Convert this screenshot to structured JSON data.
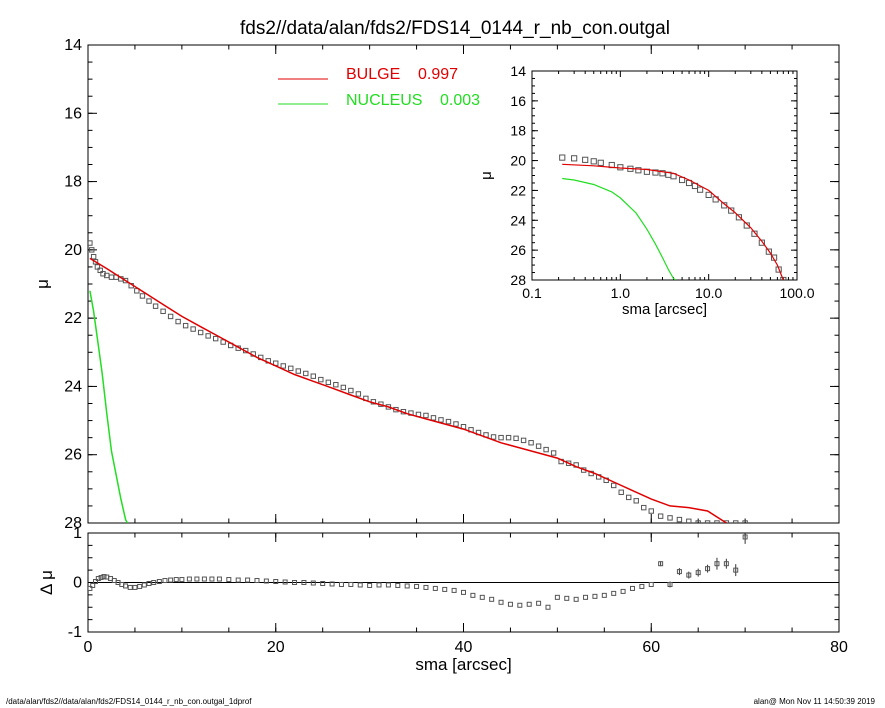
{
  "title": "fds2//data/alan/fds2/FDS14_0144_r_nb_con.outgal",
  "footer": {
    "left": "/data/alan/fds2//data/alan/fds2/FDS14_0144_r_nb_con.outgal_1dprof",
    "right": "alan@  Mon Nov 11 14:50:39 2019"
  },
  "colors": {
    "bulge": "#e00000",
    "nucleus": "#22dd22",
    "data": "#555555",
    "axes": "#000000"
  },
  "chart_data": [
    {
      "id": "main",
      "type": "scatter",
      "xlabel": "",
      "ylabel": "μ",
      "xlim": [
        0,
        80
      ],
      "ylim": [
        28,
        14
      ],
      "yticks": [
        14,
        16,
        18,
        20,
        22,
        24,
        26,
        28
      ],
      "xticks": [
        0,
        20,
        40,
        60,
        80
      ],
      "legend": [
        {
          "name": "BULGE",
          "value": "0.997",
          "color": "#e00000"
        },
        {
          "name": "NUCLEUS",
          "value": "0.003",
          "color": "#22dd22"
        }
      ],
      "legend_placement": "top-center",
      "series": [
        {
          "kind": "data",
          "x": [
            0.2,
            0.4,
            0.6,
            0.8,
            1.0,
            1.3,
            1.6,
            2.0,
            2.5,
            3.0,
            3.5,
            4.0,
            4.6,
            5.2,
            5.8,
            6.5,
            7.2,
            8.0,
            8.8,
            9.6,
            10.4,
            11.2,
            12.0,
            12.8,
            13.6,
            14.4,
            15.2,
            16.0,
            16.8,
            17.6,
            18.4,
            19.2,
            20.0,
            20.8,
            21.6,
            22.4,
            23.2,
            24.0,
            24.8,
            25.6,
            26.4,
            27.2,
            28.0,
            28.8,
            29.6,
            30.4,
            31.2,
            32.0,
            32.8,
            33.6,
            34.4,
            35.2,
            36.0,
            36.8,
            37.6,
            38.4,
            39.2,
            40.0,
            40.8,
            41.6,
            42.4,
            43.2,
            44.0,
            44.8,
            45.6,
            46.4,
            47.2,
            48.0,
            48.8,
            49.6,
            50.4,
            51.2,
            52.0,
            52.8,
            53.6,
            54.4,
            55.2,
            56.0,
            56.8,
            57.6,
            58.4,
            59.2,
            60.0,
            61.0,
            62.0,
            63.0,
            64.0,
            65.0,
            66.0,
            67.0,
            68.0,
            69.0,
            70.0
          ],
          "y": [
            19.8,
            20.0,
            20.2,
            20.35,
            20.5,
            20.6,
            20.7,
            20.75,
            20.8,
            20.8,
            20.85,
            20.9,
            21.05,
            21.2,
            21.35,
            21.5,
            21.65,
            21.8,
            21.95,
            22.1,
            22.22,
            22.32,
            22.42,
            22.52,
            22.6,
            22.7,
            22.8,
            22.88,
            22.95,
            23.05,
            23.15,
            23.25,
            23.32,
            23.4,
            23.47,
            23.55,
            23.62,
            23.7,
            23.8,
            23.88,
            23.95,
            24.03,
            24.12,
            24.22,
            24.35,
            24.45,
            24.52,
            24.6,
            24.68,
            24.74,
            24.78,
            24.82,
            24.85,
            24.92,
            24.98,
            25.03,
            25.1,
            25.18,
            25.27,
            25.35,
            25.42,
            25.48,
            25.5,
            25.5,
            25.52,
            25.58,
            25.65,
            25.75,
            25.85,
            25.95,
            26.2,
            26.25,
            26.3,
            26.45,
            26.55,
            26.65,
            26.75,
            26.9,
            27.1,
            27.25,
            27.35,
            27.55,
            27.65,
            27.8,
            27.85,
            27.9,
            27.95,
            28.0,
            28.0,
            28.0,
            28.0,
            28.0,
            28.0
          ]
        },
        {
          "kind": "line",
          "name": "BULGE",
          "x": [
            0.2,
            2,
            4,
            6,
            8,
            10,
            12,
            14,
            16,
            18,
            20,
            22,
            24,
            26,
            28,
            30,
            32,
            34,
            36,
            38,
            40,
            42,
            44,
            46,
            48,
            50,
            52,
            54,
            56,
            58,
            60,
            62,
            64,
            66,
            68
          ],
          "y": [
            20.25,
            20.55,
            20.9,
            21.25,
            21.6,
            21.95,
            22.25,
            22.55,
            22.85,
            23.15,
            23.4,
            23.65,
            23.85,
            24.05,
            24.25,
            24.45,
            24.6,
            24.8,
            24.95,
            25.1,
            25.25,
            25.45,
            25.65,
            25.8,
            25.95,
            26.1,
            26.35,
            26.55,
            26.8,
            27.05,
            27.3,
            27.5,
            27.55,
            27.65,
            28.0
          ]
        },
        {
          "kind": "line",
          "name": "NUCLEUS",
          "x": [
            0.2,
            0.6,
            1.0,
            1.5,
            2.0,
            2.5,
            3.0,
            3.5,
            4.0,
            4.2
          ],
          "y": [
            21.2,
            21.8,
            22.6,
            23.6,
            24.8,
            25.9,
            26.6,
            27.3,
            27.9,
            28.0
          ]
        }
      ]
    },
    {
      "id": "inset",
      "type": "line",
      "xlabel": "sma [arcsec]",
      "ylabel": "μ",
      "xscale": "log",
      "xlim": [
        0.1,
        100.0
      ],
      "xticks": [
        "0.1",
        "1.0",
        "10.0",
        "100.0"
      ],
      "ylim": [
        28,
        14
      ],
      "yticks": [
        14,
        16,
        18,
        20,
        22,
        24,
        26,
        28
      ],
      "series": [
        {
          "kind": "data",
          "x": [
            0.22,
            0.3,
            0.4,
            0.5,
            0.6,
            0.8,
            1.0,
            1.3,
            1.6,
            2.0,
            2.5,
            3.0,
            3.5,
            4.0,
            5.0,
            6.0,
            7.0,
            8.0,
            10.0,
            12.0,
            15.0,
            18.0,
            22.0,
            27.0,
            33.0,
            40.0,
            48.0,
            55.0,
            62.0,
            70.0
          ],
          "y": [
            19.8,
            19.85,
            19.95,
            20.05,
            20.15,
            20.3,
            20.45,
            20.55,
            20.65,
            20.75,
            20.8,
            20.85,
            20.95,
            21.05,
            21.3,
            21.5,
            21.7,
            21.95,
            22.3,
            22.6,
            23.0,
            23.35,
            23.8,
            24.35,
            24.9,
            25.5,
            26.1,
            26.5,
            27.3,
            28.0
          ]
        },
        {
          "kind": "line",
          "name": "BULGE",
          "x": [
            0.22,
            0.5,
            1.0,
            2.0,
            4.0,
            6.0,
            8.0,
            10.0,
            15.0,
            20.0,
            30.0,
            40.0,
            50.0,
            60.0,
            70.0
          ],
          "y": [
            20.25,
            20.35,
            20.5,
            20.6,
            20.85,
            21.3,
            21.7,
            22.0,
            22.9,
            23.5,
            24.5,
            25.4,
            26.2,
            27.0,
            28.0
          ]
        },
        {
          "kind": "line",
          "name": "NUCLEUS",
          "x": [
            0.22,
            0.3,
            0.5,
            0.8,
            1.0,
            1.5,
            2.0,
            2.5,
            3.0,
            3.5,
            4.0,
            4.2
          ],
          "y": [
            21.2,
            21.3,
            21.6,
            22.1,
            22.5,
            23.5,
            24.6,
            25.6,
            26.5,
            27.3,
            27.9,
            28.0
          ]
        }
      ]
    },
    {
      "id": "residual",
      "type": "scatter",
      "xlabel": "sma [arcsec]",
      "ylabel": "Δ μ",
      "xlim": [
        0,
        80
      ],
      "xticks": [
        0,
        20,
        40,
        60,
        80
      ],
      "ylim": [
        -1,
        1
      ],
      "yticks": [
        -1,
        0,
        1
      ],
      "series": [
        {
          "kind": "data",
          "x": [
            0.2,
            0.5,
            0.8,
            1.1,
            1.4,
            1.7,
            2.0,
            2.4,
            2.8,
            3.2,
            3.6,
            4.0,
            4.5,
            5.0,
            5.5,
            6.0,
            6.5,
            7.0,
            7.6,
            8.2,
            8.8,
            9.4,
            10.0,
            10.8,
            11.6,
            12.4,
            13.2,
            14.0,
            15.0,
            16.0,
            17.0,
            18.0,
            19.0,
            20.0,
            21.0,
            22.0,
            23.0,
            24.0,
            25.0,
            26.0,
            27.0,
            28.0,
            29.0,
            30.0,
            31.0,
            32.0,
            33.0,
            34.0,
            35.0,
            36.0,
            37.0,
            38.0,
            39.0,
            40.0,
            41.0,
            42.0,
            43.0,
            44.0,
            45.0,
            46.0,
            47.0,
            48.0,
            49.0,
            50.0,
            51.0,
            52.0,
            53.0,
            54.0,
            55.0,
            56.0,
            57.0,
            58.0,
            59.0,
            60.0,
            61.0,
            62.0,
            63.0,
            64.0,
            65.0,
            66.0,
            67.0,
            68.0,
            69.0,
            70.0
          ],
          "y": [
            -0.12,
            -0.06,
            0.02,
            0.08,
            0.1,
            0.12,
            0.11,
            0.08,
            0.04,
            0.0,
            -0.04,
            -0.07,
            -0.1,
            -0.1,
            -0.08,
            -0.05,
            -0.02,
            0.0,
            0.02,
            0.04,
            0.05,
            0.06,
            0.06,
            0.07,
            0.07,
            0.07,
            0.07,
            0.07,
            0.06,
            0.05,
            0.05,
            0.04,
            0.03,
            0.02,
            0.01,
            0.0,
            0.0,
            -0.01,
            -0.02,
            -0.03,
            -0.04,
            -0.04,
            -0.05,
            -0.06,
            -0.05,
            -0.05,
            -0.06,
            -0.07,
            -0.08,
            -0.1,
            -0.12,
            -0.14,
            -0.16,
            -0.2,
            -0.26,
            -0.3,
            -0.34,
            -0.4,
            -0.44,
            -0.46,
            -0.44,
            -0.42,
            -0.5,
            -0.3,
            -0.32,
            -0.34,
            -0.3,
            -0.28,
            -0.26,
            -0.22,
            -0.18,
            -0.12,
            -0.08,
            -0.04,
            0.38,
            -0.04,
            0.22,
            0.15,
            0.2,
            0.28,
            0.38,
            0.38,
            0.25,
            0.92
          ],
          "err": [
            0,
            0,
            0,
            0,
            0,
            0,
            0,
            0,
            0,
            0,
            0,
            0,
            0,
            0,
            0,
            0,
            0,
            0,
            0,
            0,
            0,
            0,
            0,
            0,
            0,
            0,
            0,
            0,
            0,
            0,
            0,
            0,
            0,
            0,
            0,
            0,
            0,
            0,
            0,
            0,
            0,
            0,
            0,
            0,
            0,
            0,
            0,
            0,
            0,
            0,
            0,
            0,
            0,
            0,
            0,
            0,
            0,
            0,
            0,
            0,
            0,
            0,
            0,
            0,
            0,
            0,
            0,
            0,
            0,
            0,
            0,
            0,
            0,
            0,
            0.05,
            0.06,
            0.07,
            0.07,
            0.08,
            0.08,
            0.12,
            0.1,
            0.12,
            0.14
          ]
        }
      ]
    }
  ]
}
